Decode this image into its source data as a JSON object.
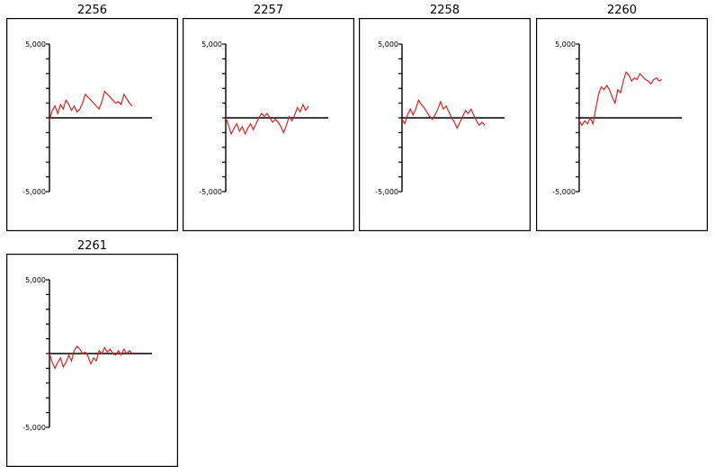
{
  "chart_data": [
    {
      "type": "line",
      "title": "2256",
      "ylim": [
        -5000,
        5000
      ],
      "yticks": [
        "5,000",
        "-5,000"
      ],
      "grid": false,
      "x": [
        0,
        1,
        2,
        3,
        4,
        5,
        6,
        7,
        8,
        9,
        10,
        11,
        12,
        13,
        14,
        15,
        16,
        17,
        18,
        19,
        20,
        21,
        22,
        23,
        24,
        25,
        26,
        27,
        28,
        29,
        30
      ],
      "values": [
        -200,
        500,
        800,
        300,
        900,
        600,
        1200,
        900,
        500,
        800,
        400,
        600,
        1000,
        1600,
        1400,
        1200,
        1000,
        800,
        600,
        1100,
        1800,
        1600,
        1400,
        1200,
        1000,
        1100,
        900,
        1600,
        1300,
        1000,
        800
      ]
    },
    {
      "type": "line",
      "title": "2257",
      "ylim": [
        -5000,
        5000
      ],
      "yticks": [
        "5,000",
        "-5,000"
      ],
      "grid": false,
      "x": [
        0,
        1,
        2,
        3,
        4,
        5,
        6,
        7,
        8,
        9,
        10,
        11,
        12,
        13,
        14,
        15,
        16,
        17,
        18,
        19,
        20,
        21,
        22,
        23,
        24,
        25,
        26,
        27,
        28,
        29,
        30
      ],
      "values": [
        0,
        -500,
        -1100,
        -700,
        -400,
        -900,
        -600,
        -1100,
        -700,
        -400,
        -800,
        -400,
        0,
        300,
        100,
        300,
        0,
        -300,
        -100,
        -300,
        -600,
        -1000,
        -500,
        100,
        -200,
        200,
        700,
        400,
        900,
        500,
        800
      ]
    },
    {
      "type": "line",
      "title": "2258",
      "ylim": [
        -5000,
        5000
      ],
      "yticks": [
        "5,000",
        "-5,000"
      ],
      "grid": false,
      "x": [
        0,
        1,
        2,
        3,
        4,
        5,
        6,
        7,
        8,
        9,
        10,
        11,
        12,
        13,
        14,
        15,
        16,
        17,
        18,
        19,
        20,
        21,
        22,
        23,
        24,
        25,
        26,
        27,
        28,
        29,
        30
      ],
      "values": [
        -100,
        -400,
        200,
        600,
        200,
        600,
        1200,
        900,
        700,
        400,
        100,
        -100,
        200,
        600,
        1100,
        600,
        800,
        400,
        0,
        -300,
        -700,
        -300,
        100,
        500,
        300,
        600,
        200,
        -200,
        -500,
        -300,
        -500
      ]
    },
    {
      "type": "line",
      "title": "2260",
      "ylim": [
        -5000,
        5000
      ],
      "yticks": [
        "5,000",
        "-5,000"
      ],
      "grid": false,
      "x": [
        0,
        1,
        2,
        3,
        4,
        5,
        6,
        7,
        8,
        9,
        10,
        11,
        12,
        13,
        14,
        15,
        16,
        17,
        18,
        19,
        20,
        21,
        22,
        23,
        24,
        25,
        26,
        27,
        28,
        29,
        30
      ],
      "values": [
        -200,
        -500,
        -200,
        -400,
        0,
        -400,
        600,
        1600,
        2100,
        1900,
        2200,
        1900,
        1400,
        1000,
        1900,
        1700,
        2500,
        3100,
        2900,
        2500,
        2700,
        2600,
        3000,
        2800,
        2600,
        2500,
        2300,
        2600,
        2700,
        2500,
        2600
      ]
    },
    {
      "type": "line",
      "title": "2261",
      "ylim": [
        -5000,
        5000
      ],
      "yticks": [
        "5,000",
        "-5,000"
      ],
      "grid": false,
      "x": [
        0,
        1,
        2,
        3,
        4,
        5,
        6,
        7,
        8,
        9,
        10,
        11,
        12,
        13,
        14,
        15,
        16,
        17,
        18,
        19,
        20,
        21,
        22,
        23,
        24,
        25,
        26,
        27,
        28,
        29,
        30
      ],
      "values": [
        0,
        -600,
        -1000,
        -600,
        -300,
        -900,
        -600,
        -100,
        -500,
        200,
        500,
        300,
        0,
        100,
        -200,
        -700,
        -300,
        -500,
        200,
        0,
        400,
        100,
        300,
        0,
        -100,
        200,
        -100,
        300,
        0,
        200,
        0
      ]
    }
  ]
}
